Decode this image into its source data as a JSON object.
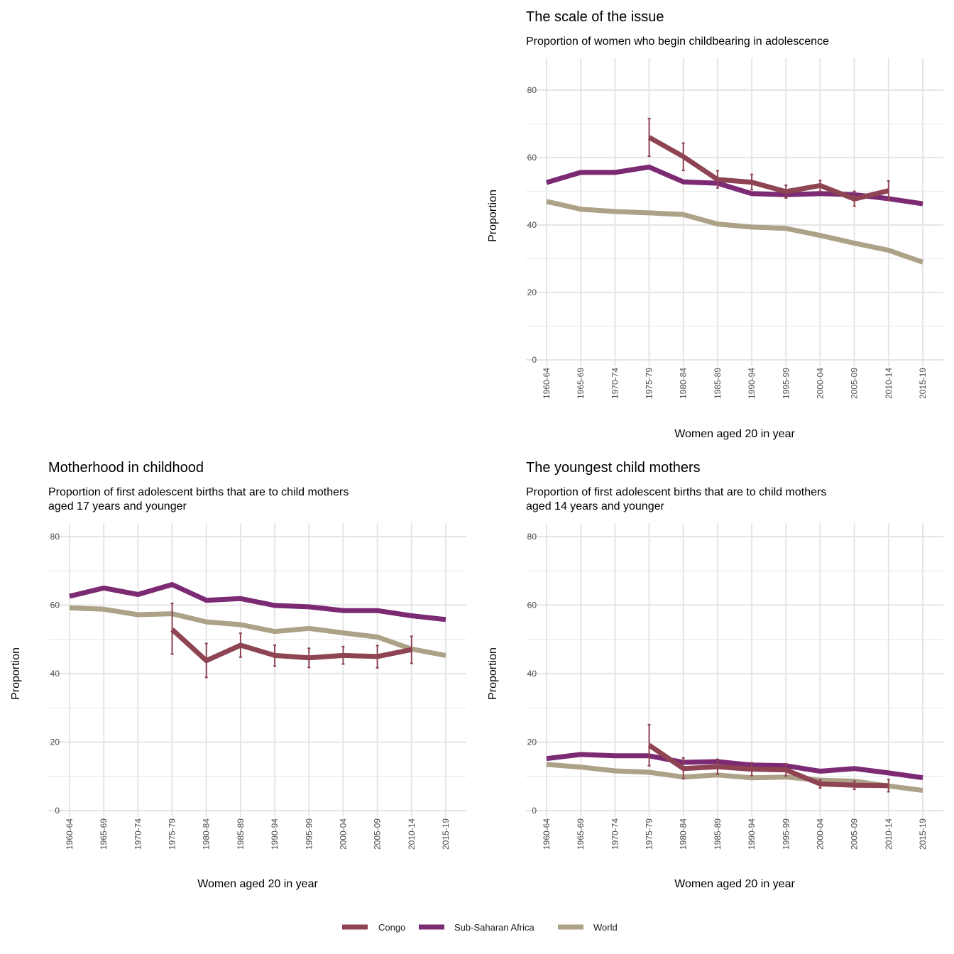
{
  "colors": {
    "Congo": "#8e4452",
    "Sub-Saharan Africa": "#7b2a73",
    "World": "#ada188"
  },
  "legend": {
    "items": [
      "Congo",
      "Sub-Saharan Africa",
      "World"
    ],
    "position": "bottom"
  },
  "chart_data": [
    {
      "type": "line",
      "title": "The scale of the issue",
      "subtitle": [
        "Proportion of women who begin childbearing in adolescence"
      ],
      "xlabel": "Women aged 20 in year",
      "ylabel": "Proportion",
      "ylim": [
        0,
        80
      ],
      "yticks": [
        0,
        20,
        40,
        60,
        80
      ],
      "grid": true,
      "categories": [
        "1960-64",
        "1965-69",
        "1970-74",
        "1975-79",
        "1980-84",
        "1985-89",
        "1990-94",
        "1995-99",
        "2000-04",
        "2005-09",
        "2010-14",
        "2015-19"
      ],
      "series": [
        {
          "name": "World",
          "values": [
            47.0,
            44.7,
            44.0,
            43.6,
            43.1,
            40.3,
            39.4,
            39.0,
            36.9,
            34.6,
            32.5,
            29.0
          ]
        },
        {
          "name": "Sub-Saharan Africa",
          "values": [
            52.6,
            55.6,
            55.6,
            57.2,
            52.8,
            52.4,
            49.3,
            49.0,
            49.3,
            49.0,
            47.8,
            46.3
          ]
        },
        {
          "name": "Congo",
          "values": [
            null,
            null,
            null,
            66.0,
            60.3,
            53.5,
            52.7,
            49.9,
            51.7,
            47.7,
            50.2,
            null
          ],
          "ci": [
            null,
            null,
            null,
            [
              60.4,
              71.6
            ],
            [
              56.2,
              64.3
            ],
            [
              51.0,
              56.1
            ],
            [
              50.5,
              55.0
            ],
            [
              48.0,
              51.8
            ],
            [
              50.0,
              53.2
            ],
            [
              45.6,
              50.0
            ],
            [
              47.3,
              53.1
            ],
            null
          ]
        }
      ]
    },
    {
      "type": "line",
      "title": "Motherhood in childhood",
      "subtitle": [
        "Proportion of first adolescent births that are to child mothers",
        "aged 17 years and younger"
      ],
      "xlabel": "Women aged 20 in year",
      "ylabel": "Proportion",
      "ylim": [
        0,
        80
      ],
      "yticks": [
        0,
        20,
        40,
        60,
        80
      ],
      "grid": true,
      "categories": [
        "1960-64",
        "1965-69",
        "1970-74",
        "1975-79",
        "1980-84",
        "1985-89",
        "1990-94",
        "1995-99",
        "2000-04",
        "2005-09",
        "2010-14",
        "2015-19"
      ],
      "series": [
        {
          "name": "World",
          "values": [
            59.2,
            58.8,
            57.2,
            57.5,
            55.1,
            54.3,
            52.3,
            53.2,
            51.9,
            50.7,
            47.2,
            45.3
          ]
        },
        {
          "name": "Sub-Saharan Africa",
          "values": [
            62.6,
            65.0,
            63.1,
            66.0,
            61.4,
            61.9,
            59.9,
            59.5,
            58.4,
            58.4,
            56.9,
            55.8
          ]
        },
        {
          "name": "Congo",
          "values": [
            null,
            null,
            null,
            52.9,
            43.8,
            48.3,
            45.3,
            44.6,
            45.3,
            45.0,
            47.0,
            null
          ],
          "ci": [
            null,
            null,
            null,
            [
              45.7,
              60.5
            ],
            [
              38.9,
              48.8
            ],
            [
              44.8,
              51.8
            ],
            [
              42.2,
              48.3
            ],
            [
              41.8,
              47.4
            ],
            [
              42.8,
              47.9
            ],
            [
              41.7,
              48.2
            ],
            [
              43.0,
              50.9
            ],
            null
          ]
        }
      ]
    },
    {
      "type": "line",
      "title": "The youngest child mothers",
      "subtitle": [
        "Proportion of first adolescent births that are to child mothers",
        "aged 14 years and younger"
      ],
      "xlabel": "Women aged 20 in year",
      "ylabel": "Proportion",
      "ylim": [
        0,
        80
      ],
      "yticks": [
        0,
        20,
        40,
        60,
        80
      ],
      "grid": true,
      "categories": [
        "1960-64",
        "1965-69",
        "1970-74",
        "1975-79",
        "1980-84",
        "1985-89",
        "1990-94",
        "1995-99",
        "2000-04",
        "2005-09",
        "2010-14",
        "2015-19"
      ],
      "series": [
        {
          "name": "World",
          "values": [
            13.5,
            12.7,
            11.6,
            11.2,
            9.8,
            10.4,
            9.6,
            9.8,
            8.9,
            8.6,
            7.2,
            5.9
          ]
        },
        {
          "name": "Sub-Saharan Africa",
          "values": [
            15.2,
            16.4,
            16.0,
            16.0,
            14.1,
            14.3,
            13.3,
            13.1,
            11.5,
            12.3,
            11.0,
            9.6
          ]
        },
        {
          "name": "Congo",
          "values": [
            null,
            null,
            null,
            19.1,
            12.3,
            12.8,
            12.1,
            11.9,
            7.8,
            7.4,
            7.3,
            null
          ],
          "ci": [
            null,
            null,
            null,
            [
              13.1,
              25.1
            ],
            [
              9.3,
              15.4
            ],
            [
              10.6,
              15.0
            ],
            [
              10.2,
              14.0
            ],
            [
              10.1,
              13.7
            ],
            [
              6.6,
              9.0
            ],
            [
              6.2,
              8.6
            ],
            [
              5.5,
              9.1
            ],
            null
          ]
        }
      ]
    }
  ]
}
